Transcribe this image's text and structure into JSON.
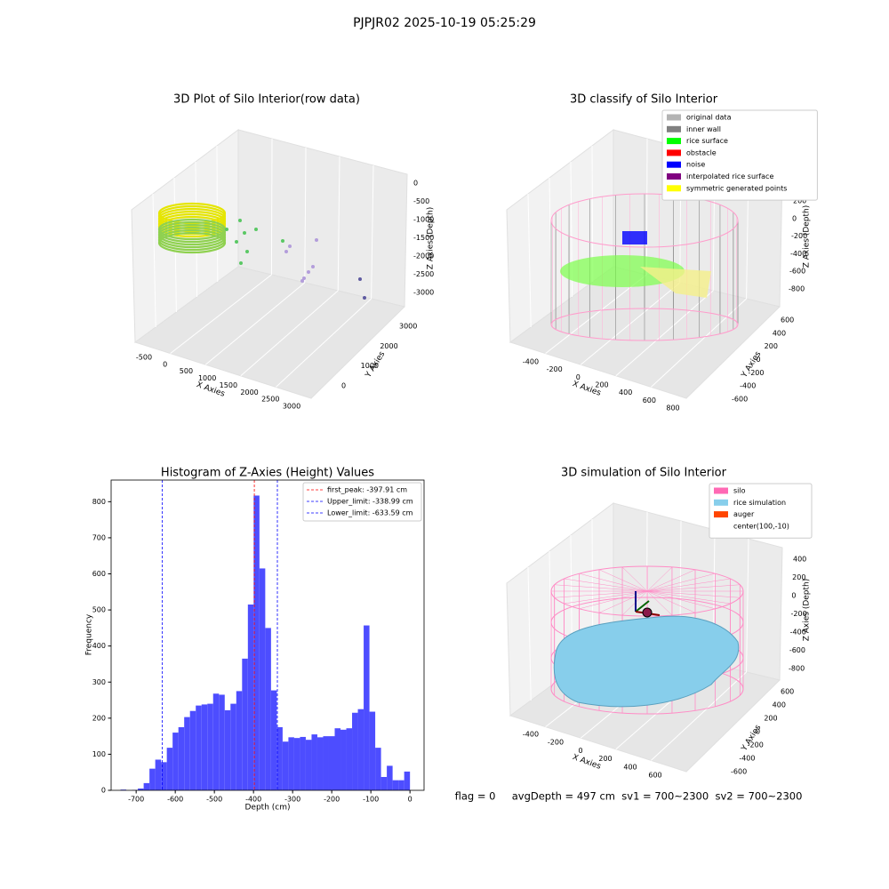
{
  "title": "PJPJR02 2025-10-19 05:25:29",
  "footer": "flag = 0     avgDepth = 497 cm  sv1 = 700~2300  sv2 = 700~2300",
  "chart_data": [
    {
      "type": "scatter3d",
      "title": "3D Plot of Silo Interior(row data)",
      "xlabel": "X Axies",
      "ylabel": "Y Axies",
      "zlabel": "Z Axies (Depth)",
      "xticks": [
        -500,
        0,
        500,
        1000,
        1500,
        2000,
        2500,
        3000
      ],
      "yticks": [
        0,
        1000,
        2000,
        3000
      ],
      "zticks": [
        0,
        -500,
        -1000,
        -1500,
        -2000,
        -2500,
        -3000
      ]
    },
    {
      "type": "scatter3d",
      "title": "3D classify of Silo Interior",
      "xlabel": "X Axies",
      "ylabel": "Y Axies",
      "zlabel": "Z Axies (Depth)",
      "xticks": [
        -400,
        -200,
        0,
        200,
        400,
        600,
        800
      ],
      "yticks": [
        -600,
        -400,
        -200,
        0,
        200,
        400,
        600
      ],
      "zticks": [
        200,
        0,
        -200,
        -400,
        -600,
        -800
      ],
      "legend": [
        {
          "name": "original data",
          "color": "#b3b3b3"
        },
        {
          "name": "inner wall",
          "color": "#808080"
        },
        {
          "name": "rice surface",
          "color": "#00ff00"
        },
        {
          "name": "obstacle",
          "color": "#ff0000"
        },
        {
          "name": "noise",
          "color": "#0000ff"
        },
        {
          "name": "interpolated rice surface",
          "color": "#800080"
        },
        {
          "name": "symmetric generated points",
          "color": "#ffff00"
        }
      ]
    },
    {
      "type": "histogram",
      "title": "Histogram of Z-Axies (Height) Values",
      "xlabel": "Depth (cm)",
      "ylabel": "Frequency",
      "color": "#4d4dff",
      "bins": [
        -740,
        -725.2,
        -710.4,
        -695.6,
        -680.8,
        -666,
        -651.2,
        -636.4,
        -621.6,
        -606.8,
        -592,
        -577.2,
        -562.4,
        -547.6,
        -532.8,
        -518,
        -503.2,
        -488.4,
        -473.6,
        -458.8,
        -444,
        -429.2,
        -414.4,
        -399.6,
        -384.8,
        -370,
        -355.2,
        -340.4,
        -325.6,
        -310.8,
        -296,
        -281.2,
        -266.4,
        -251.6,
        -236.8,
        -222,
        -207.2,
        -192.4,
        -177.6,
        -162.8,
        -148,
        -133.2,
        -118.4,
        -103.6,
        -88.8,
        -74,
        -59.2,
        -44.4,
        -29.6,
        -14.8,
        0
      ],
      "values": [
        2,
        0,
        1,
        5,
        20,
        60,
        85,
        78,
        118,
        160,
        175,
        203,
        220,
        235,
        238,
        240,
        268,
        265,
        222,
        240,
        275,
        365,
        515,
        817,
        615,
        450,
        277,
        175,
        135,
        147,
        145,
        148,
        140,
        155,
        147,
        150,
        150,
        172,
        168,
        172,
        215,
        225,
        457,
        218,
        118,
        37,
        68,
        28,
        28,
        52
      ],
      "xlim": [
        -764,
        36
      ],
      "ylim": [
        0,
        860
      ],
      "xticks": [
        -700,
        -600,
        -500,
        -400,
        -300,
        -200,
        -100,
        0
      ],
      "yticks": [
        0,
        100,
        200,
        300,
        400,
        500,
        600,
        700,
        800
      ],
      "lines": [
        {
          "label": "first_peak: -397.91 cm",
          "value": -397.91,
          "color": "#ff0000"
        },
        {
          "label": "Upper_limit: -338.99 cm",
          "value": -338.99,
          "color": "#0000ff"
        },
        {
          "label": "Lower_limit: -633.59 cm",
          "value": -633.59,
          "color": "#0000ff"
        }
      ]
    },
    {
      "type": "surface3d",
      "title": "3D simulation of Silo Interior",
      "xlabel": "X Axies",
      "ylabel": "Y Axies",
      "zlabel": "Z Axies (Depth)",
      "xticks": [
        -400,
        -200,
        0,
        200,
        400,
        600
      ],
      "yticks": [
        -600,
        -400,
        -200,
        0,
        200,
        400,
        600
      ],
      "zticks": [
        400,
        200,
        0,
        -200,
        -400,
        -600,
        -800
      ],
      "legend": [
        {
          "name": "silo",
          "color": "#ff69b4"
        },
        {
          "name": "rice simulation",
          "color": "#87ceeb"
        },
        {
          "name": "auger",
          "color": "#ff4500"
        },
        {
          "name": "center(100,-10)"
        }
      ]
    }
  ]
}
